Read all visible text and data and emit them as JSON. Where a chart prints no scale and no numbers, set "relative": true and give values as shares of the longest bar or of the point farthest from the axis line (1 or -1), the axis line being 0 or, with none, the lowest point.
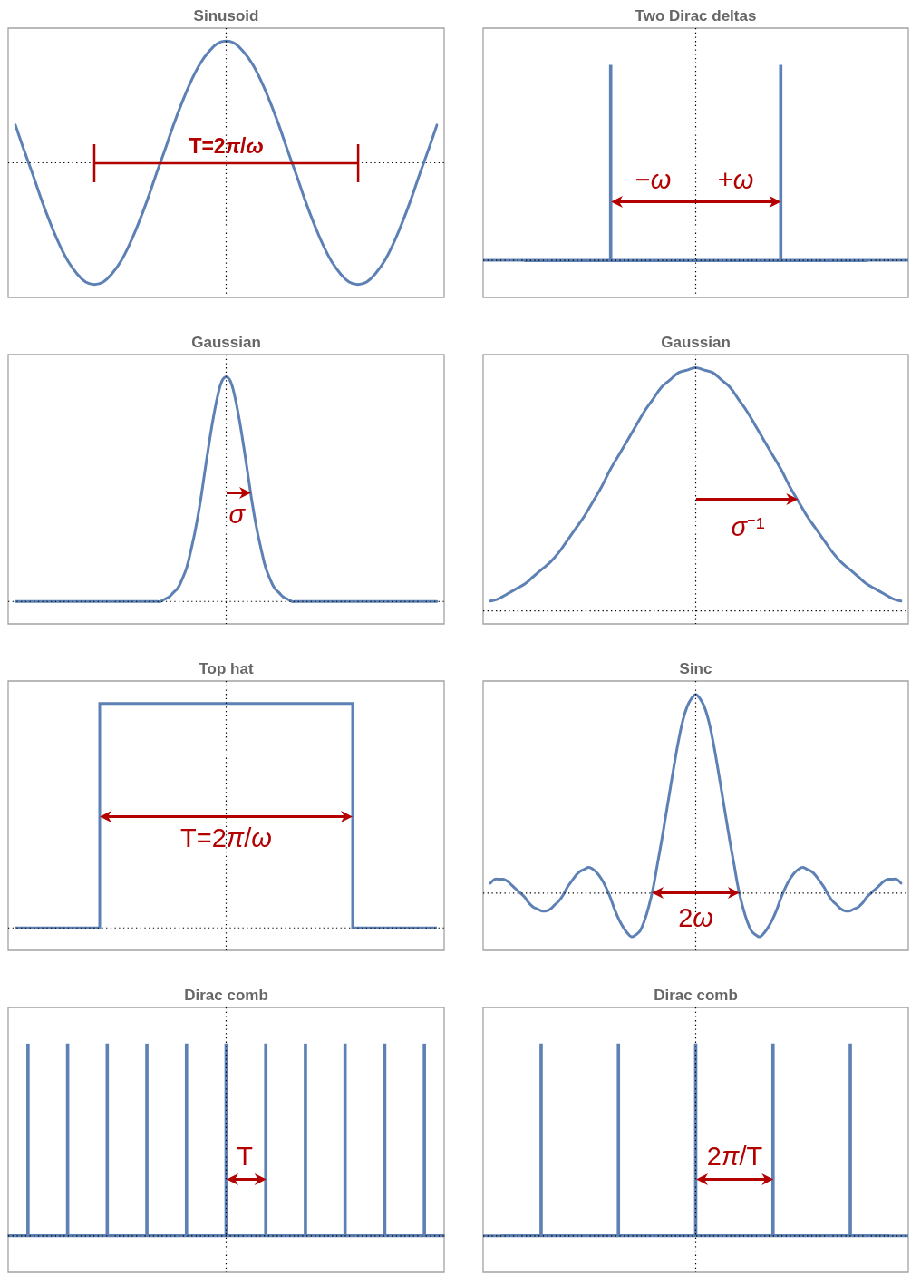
{
  "chart_data": [
    {
      "type": "line",
      "title": "Sinusoid",
      "relative": true,
      "color": "#5e81b5",
      "annotations": [
        "T=2π/ω"
      ],
      "categories": [
        null,
        null,
        null,
        null,
        null,
        null,
        null,
        null,
        null,
        null,
        null,
        null,
        null,
        null,
        null,
        null,
        null,
        null,
        null,
        null,
        null,
        null,
        null,
        null,
        null,
        null,
        null,
        null,
        null,
        null,
        null,
        null,
        null,
        null,
        null,
        null,
        null,
        null,
        null,
        null,
        null,
        null,
        null,
        null,
        null,
        null,
        null,
        null,
        null
      ],
      "values": [
        0.31,
        0.1,
        -0.1,
        -0.31,
        -0.5,
        -0.67,
        -0.81,
        -0.91,
        -0.98,
        -1,
        -0.98,
        -0.91,
        -0.81,
        -0.67,
        -0.5,
        -0.31,
        -0.1,
        0.1,
        0.31,
        0.5,
        0.67,
        0.81,
        0.91,
        0.98,
        1,
        0.98,
        0.91,
        0.81,
        0.67,
        0.5,
        0.31,
        0.1,
        -0.1,
        -0.31,
        -0.5,
        -0.67,
        -0.81,
        -0.91,
        -0.98,
        -1,
        -0.98,
        -0.91,
        -0.81,
        -0.67,
        -0.5,
        -0.31,
        -0.1,
        0.1,
        0.31
      ]
    },
    {
      "type": "bar",
      "title": "Two Dirac deltas",
      "relative": true,
      "color": "#5e81b5",
      "annotations": [
        "−ω",
        "+ω"
      ],
      "categories": [
        null,
        null
      ],
      "values": [
        1,
        1
      ]
    },
    {
      "type": "line",
      "title": "Gaussian",
      "relative": true,
      "color": "#5e81b5",
      "annotations": [
        "σ"
      ],
      "categories": [
        null,
        null,
        null,
        null,
        null,
        null,
        null,
        null,
        null,
        null,
        null,
        null,
        null,
        null,
        null,
        null,
        null,
        null,
        null,
        null,
        null,
        null,
        null,
        null,
        null,
        null,
        null,
        null,
        null,
        null,
        null,
        null,
        null,
        null,
        null,
        null,
        null,
        null,
        null,
        null,
        null,
        null,
        null,
        null,
        null,
        null,
        null,
        null,
        null,
        null,
        null,
        null,
        null,
        null,
        null,
        null,
        null,
        null,
        null,
        null,
        null,
        null,
        null,
        null,
        null,
        null,
        null,
        null,
        null,
        null,
        null,
        null,
        null,
        null,
        null,
        null,
        null,
        null,
        null,
        null,
        null,
        null,
        null,
        null,
        null,
        null,
        null,
        null,
        null,
        null,
        null,
        null,
        null,
        null,
        null,
        null,
        null
      ],
      "values": [
        0,
        0,
        0,
        0,
        0,
        0,
        0,
        0,
        0,
        0,
        0,
        0,
        0,
        0,
        0,
        0,
        0,
        0,
        0,
        0,
        0,
        0,
        0,
        0,
        0,
        0,
        0,
        0,
        0,
        0,
        0,
        0,
        0,
        0,
        0.01,
        0.02,
        0.04,
        0.06,
        0.1,
        0.15,
        0.23,
        0.32,
        0.43,
        0.56,
        0.69,
        0.81,
        0.91,
        0.98,
        1,
        0.98,
        0.91,
        0.81,
        0.69,
        0.56,
        0.43,
        0.32,
        0.23,
        0.15,
        0.1,
        0.06,
        0.04,
        0.02,
        0.01,
        0,
        0,
        0,
        0,
        0,
        0,
        0,
        0,
        0,
        0,
        0,
        0,
        0,
        0,
        0,
        0,
        0,
        0,
        0,
        0,
        0,
        0,
        0,
        0,
        0,
        0,
        0,
        0,
        0,
        0,
        0,
        0,
        0,
        0
      ]
    },
    {
      "type": "line",
      "title": "Gaussian",
      "relative": true,
      "color": "#5e81b5",
      "annotations": [
        "σ⁻¹"
      ],
      "categories": [
        null,
        null,
        null,
        null,
        null,
        null,
        null,
        null,
        null,
        null,
        null,
        null,
        null,
        null,
        null,
        null,
        null,
        null,
        null,
        null,
        null,
        null,
        null,
        null,
        null,
        null,
        null,
        null,
        null,
        null,
        null,
        null,
        null,
        null,
        null,
        null,
        null,
        null,
        null,
        null,
        null,
        null,
        null,
        null,
        null,
        null,
        null,
        null,
        null
      ],
      "values": [
        0.04,
        0.05,
        0.07,
        0.09,
        0.11,
        0.14,
        0.17,
        0.2,
        0.24,
        0.29,
        0.34,
        0.39,
        0.45,
        0.51,
        0.58,
        0.64,
        0.7,
        0.76,
        0.82,
        0.87,
        0.92,
        0.95,
        0.98,
        0.99,
        1,
        0.99,
        0.98,
        0.95,
        0.92,
        0.87,
        0.82,
        0.76,
        0.7,
        0.64,
        0.58,
        0.51,
        0.45,
        0.39,
        0.34,
        0.29,
        0.24,
        0.2,
        0.17,
        0.14,
        0.11,
        0.09,
        0.07,
        0.05,
        0.04
      ]
    },
    {
      "type": "step",
      "title": "Top hat",
      "relative": true,
      "color": "#5e81b5",
      "annotations": [
        "T=2π/ω"
      ],
      "categories": [
        null,
        null,
        null,
        null,
        null,
        null,
        null,
        null,
        null,
        null,
        null
      ],
      "values": [
        0,
        0,
        1,
        1,
        1,
        1,
        1,
        1,
        0,
        0,
        0
      ]
    },
    {
      "type": "line",
      "title": "Sinc",
      "relative": true,
      "color": "#5e81b5",
      "annotations": [
        "2ω"
      ],
      "categories": [
        null,
        null,
        null,
        null,
        null,
        null,
        null,
        null,
        null,
        null,
        null,
        null,
        null,
        null,
        null,
        null,
        null,
        null,
        null,
        null,
        null,
        null,
        null,
        null,
        null,
        null,
        null,
        null,
        null,
        null,
        null,
        null,
        null,
        null,
        null,
        null,
        null,
        null,
        null,
        null,
        null,
        null,
        null,
        null,
        null,
        null,
        null,
        null,
        null,
        null,
        null,
        null,
        null,
        null,
        null,
        null,
        null,
        null,
        null,
        null,
        null,
        null,
        null,
        null,
        null,
        null,
        null,
        null,
        null,
        null,
        null,
        null,
        null,
        null,
        null,
        null,
        null,
        null,
        null,
        null,
        null,
        null,
        null,
        null,
        null,
        null,
        null,
        null,
        null,
        null,
        null,
        null,
        null,
        null,
        null,
        null,
        null
      ],
      "values": [
        0.05,
        0.07,
        0.07,
        0.07,
        0.06,
        0.04,
        0.02,
        0,
        -0.02,
        -0.05,
        -0.07,
        -0.08,
        -0.09,
        -0.09,
        -0.08,
        -0.06,
        -0.04,
        -0.01,
        0.03,
        0.06,
        0.09,
        0.11,
        0.12,
        0.13,
        0.12,
        0.1,
        0.07,
        0.03,
        -0.02,
        -0.08,
        -0.13,
        -0.17,
        -0.2,
        -0.22,
        -0.21,
        -0.19,
        -0.14,
        -0.07,
        0.02,
        0.14,
        0.26,
        0.39,
        0.52,
        0.65,
        0.77,
        0.87,
        0.94,
        0.98,
        1,
        0.98,
        0.94,
        0.87,
        0.77,
        0.65,
        0.52,
        0.39,
        0.26,
        0.14,
        0.02,
        -0.07,
        -0.14,
        -0.19,
        -0.21,
        -0.22,
        -0.2,
        -0.17,
        -0.13,
        -0.08,
        -0.02,
        0.03,
        0.07,
        0.1,
        0.12,
        0.13,
        0.12,
        0.11,
        0.09,
        0.06,
        0.03,
        -0.01,
        -0.04,
        -0.06,
        -0.08,
        -0.09,
        -0.09,
        -0.08,
        -0.07,
        -0.05,
        -0.02,
        0,
        0.02,
        0.04,
        0.06,
        0.07,
        0.07,
        0.07,
        0.05
      ]
    },
    {
      "type": "bar",
      "title": "Dirac comb",
      "relative": true,
      "color": "#5e81b5",
      "annotations": [
        "T"
      ],
      "categories": [
        null,
        null,
        null,
        null,
        null,
        null,
        null,
        null,
        null,
        null,
        null
      ],
      "values": [
        1,
        1,
        1,
        1,
        1,
        1,
        1,
        1,
        1,
        1,
        1
      ]
    },
    {
      "type": "bar",
      "title": "Dirac comb",
      "relative": true,
      "color": "#5e81b5",
      "annotations": [
        "2π/T"
      ],
      "categories": [
        null,
        null,
        null,
        null,
        null
      ],
      "values": [
        1,
        1,
        1,
        1,
        1
      ]
    }
  ]
}
